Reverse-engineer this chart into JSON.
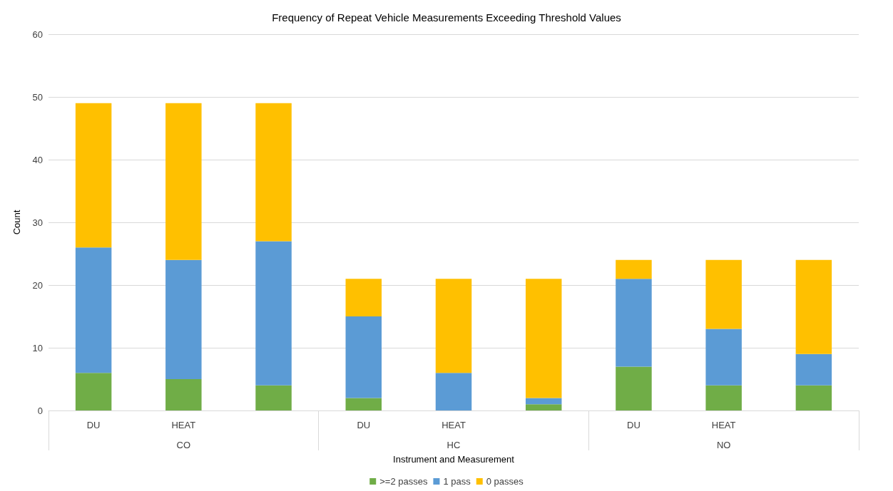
{
  "chart_data": {
    "type": "bar",
    "title": "Frequency of Repeat Vehicle Measurements Exceeding Threshold Values",
    "xlabel": "Instrument and Measurement",
    "ylabel": "Count",
    "categories": [
      "DU",
      "HEAT",
      null,
      "DU",
      "HEAT",
      null,
      "DU",
      "HEAT",
      null
    ],
    "annotations": [
      "CO",
      "HC",
      "NO"
    ],
    "stacked": true,
    "series": [
      {
        "name": ">=2 passes",
        "color": "#70ad47",
        "values": [
          6,
          5,
          4,
          2,
          0,
          1,
          7,
          4,
          4
        ]
      },
      {
        "name": "1 pass",
        "color": "#5b9bd5",
        "values": [
          20,
          19,
          23,
          13,
          6,
          1,
          14,
          9,
          5
        ]
      },
      {
        "name": "0 passes",
        "color": "#ffc000",
        "values": [
          23,
          25,
          22,
          6,
          15,
          19,
          3,
          11,
          15
        ]
      }
    ],
    "ylim": [
      0,
      60
    ],
    "yticks": [
      0,
      10,
      20,
      30,
      40,
      50,
      60
    ],
    "grid": "y",
    "legend": "bottom"
  }
}
